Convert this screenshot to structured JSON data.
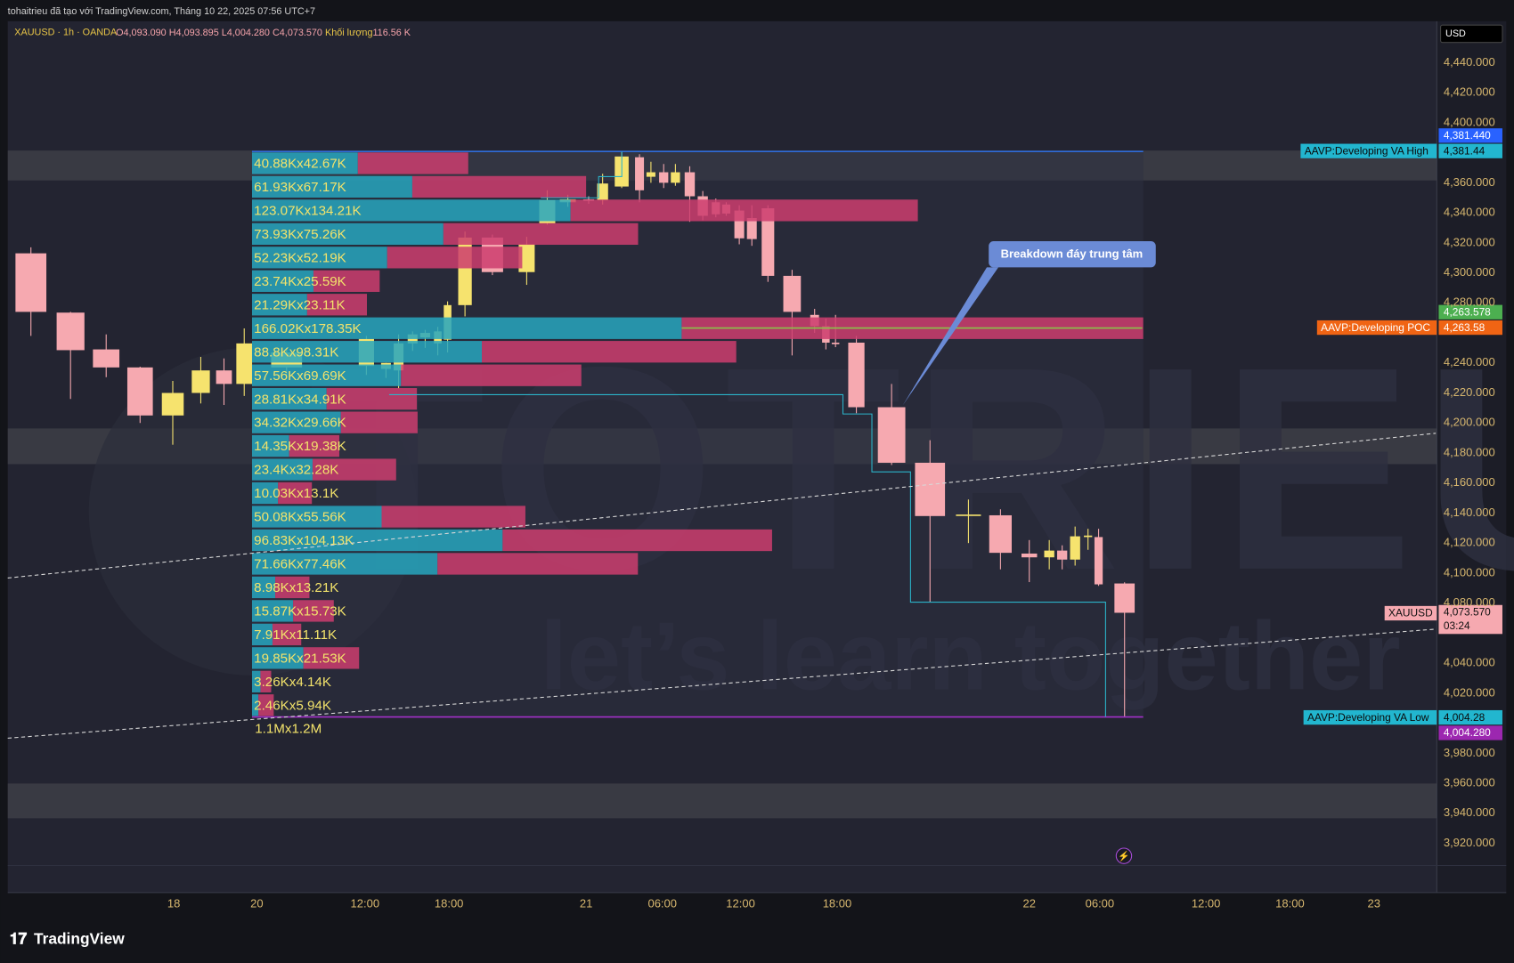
{
  "header": {
    "byline": "tohaitrieu đã tạo với TradingView.com, Tháng 10 22, 2025 07:56 UTC+7",
    "symbol": "XAUUSD · 1h · OANDA",
    "ohlc": [
      "O4,093.090",
      "H4,093.895",
      "L4,004.280",
      "C4,073.570"
    ],
    "volume_key": "Khối lượng",
    "volume": "116.56 K"
  },
  "currency": "USD",
  "badges": {
    "va_high_price": "4,381.440",
    "va_high_name": "AAVP:Developing VA High",
    "va_high": "4,381.44",
    "poc_price": "4,263.578",
    "poc_name": "AAVP:Developing POC",
    "poc": "4,263.58",
    "last_name": "XAUUSD",
    "last": "4,073.570",
    "countdown": "03:24",
    "va_low_name": "AAVP:Developing VA Low",
    "va_low": "4,004.28",
    "va_low_price": "4,004.280"
  },
  "annotation": "Breakdown đáy trung tâm",
  "watermark": {
    "name": "TOTRIEU",
    "slogan": "let’s learn together"
  },
  "brand": "TradingView",
  "chart_data": [
    {
      "type": "candlestick",
      "up_color": "#f6e36e",
      "down_color": "#f6a9b0",
      "grid": false,
      "x": [
        -82.6,
        -59.7,
        -39.1,
        -19.5,
        -0.6,
        15.6,
        29.0,
        40.7,
        51.3,
        60.1,
        61.5,
        62.4,
        63.4,
        64.3,
        65.2,
        65.9,
        66.7,
        67.9,
        69.4,
        70.3,
        71.2,
        72.2,
        73.3,
        74.8,
        76.2,
        77.1,
        78.1,
        79.0,
        80.1,
        81.1,
        82.1,
        82.9,
        83.9,
        84.7,
        85.7,
        87.2,
        88.6,
        89.3,
        89.9,
        90.6,
        91.7,
        92.9,
        94.1,
        95.1,
        96.0,
        97.7,
        98.8,
        99.9,
        101.0,
        101.9,
        103.4
      ],
      "open": [
        4313,
        4273.5,
        4249,
        4237,
        4205,
        4220,
        4235,
        4226,
        4237,
        4238,
        4236,
        4235,
        4253,
        4257,
        4253,
        4255.5,
        4278.5,
        4323.5,
        4300.5,
        4333,
        4347,
        4349,
        4348.5,
        4357.5,
        4377,
        4364,
        4367,
        4360,
        4367,
        4351,
        4347,
        4345.5,
        4341.5,
        4336.5,
        4343,
        4298,
        4272,
        4264.5,
        4253.5,
        4253.5,
        4210.5,
        4173.5,
        4138.5,
        4138.5,
        4113,
        4110.5,
        4115,
        4109,
        4124,
        4124,
        4093.09
      ],
      "high": [
        4317,
        4274,
        4259,
        4237.5,
        4228,
        4244,
        4243,
        4263,
        4250,
        4258,
        4240,
        4259,
        4261,
        4262,
        4264,
        4281,
        4327.5,
        4325.5,
        4324,
        4355,
        4352,
        4351,
        4366,
        4381,
        4379,
        4374,
        4372.5,
        4372.5,
        4371,
        4354.5,
        4349.5,
        4347,
        4345,
        4345,
        4345,
        4302,
        4276,
        4269.5,
        4272,
        4258,
        4226,
        4188.5,
        4149,
        4142.5,
        4122,
        4122,
        4118.5,
        4131,
        4129.5,
        4129.5,
        4093.895
      ],
      "low": [
        4258,
        4216,
        4230.5,
        4200,
        4185.5,
        4213,
        4212,
        4218,
        4232,
        4232,
        4230,
        4223,
        4248,
        4250,
        4245,
        4247,
        4271,
        4298.5,
        4292,
        4332,
        4344,
        4346,
        4345.5,
        4356.5,
        4347,
        4360,
        4356.5,
        4358,
        4334,
        4335,
        4337,
        4338,
        4319,
        4318,
        4294,
        4245,
        4260,
        4249,
        4250.5,
        4206.5,
        4172,
        4080.5,
        4120,
        4102.5,
        4094,
        4102.5,
        4102.5,
        4105,
        4115.5,
        4091.5,
        4004.28
      ],
      "close": [
        4274,
        4248.5,
        4237,
        4205,
        4220,
        4235,
        4226,
        4253,
        4247,
        4256,
        4240,
        4253,
        4259,
        4260,
        4261,
        4278.5,
        4323.5,
        4300.5,
        4319,
        4348.5,
        4349,
        4348.5,
        4359.5,
        4377.5,
        4355,
        4367,
        4360,
        4367,
        4351,
        4338,
        4339,
        4339.5,
        4323,
        4322.5,
        4298,
        4274,
        4264.5,
        4253.5,
        4252.5,
        4210.5,
        4173.5,
        4138,
        4139,
        4113.5,
        4110.5,
        4115,
        4109,
        4124.5,
        4125,
        4092.5,
        4073.57
      ],
      "xlim": [
        -96,
        124.5
      ],
      "xticks": [
        {
          "value": 0,
          "label": "18"
        },
        {
          "value": 48,
          "label": "20"
        },
        {
          "value": 60,
          "label": "12:00"
        },
        {
          "value": 66,
          "label": "18:00"
        },
        {
          "value": 72,
          "label": "21"
        },
        {
          "value": 78,
          "label": "06:00"
        },
        {
          "value": 84,
          "label": "12:00"
        },
        {
          "value": 90,
          "label": "18:00"
        },
        {
          "value": 96,
          "label": "22"
        },
        {
          "value": 102,
          "label": "06:00"
        },
        {
          "value": 108,
          "label": "12:00"
        },
        {
          "value": 114,
          "label": "18:00"
        },
        {
          "value": 120,
          "label": "23"
        }
      ],
      "ylim": [
        3905.2,
        4467.6
      ],
      "yticks": [
        {
          "value": 4440,
          "label": "4,440.000"
        },
        {
          "value": 4420,
          "label": "4,420.000"
        },
        {
          "value": 4400,
          "label": "4,400.000"
        },
        {
          "value": 4360,
          "label": "4,360.000"
        },
        {
          "value": 4340,
          "label": "4,340.000"
        },
        {
          "value": 4320,
          "label": "4,320.000"
        },
        {
          "value": 4300,
          "label": "4,300.000"
        },
        {
          "value": 4280,
          "label": "4,280.000"
        },
        {
          "value": 4240,
          "label": "4,240.000"
        },
        {
          "value": 4220,
          "label": "4,220.000"
        },
        {
          "value": 4200,
          "label": "4,200.000"
        },
        {
          "value": 4180,
          "label": "4,180.000"
        },
        {
          "value": 4160,
          "label": "4,160.000"
        },
        {
          "value": 4140,
          "label": "4,140.000"
        },
        {
          "value": 4120,
          "label": "4,120.000"
        },
        {
          "value": 4100,
          "label": "4,100.000"
        },
        {
          "value": 4080,
          "label": "4,080.000"
        },
        {
          "value": 4040,
          "label": "4,040.000"
        },
        {
          "value": 4020,
          "label": "4,020.000"
        },
        {
          "value": 3980,
          "label": "3,980.000"
        },
        {
          "value": 3960,
          "label": "3,960.000"
        },
        {
          "value": 3940,
          "label": "3,940.000"
        },
        {
          "value": 3920,
          "label": "3,920.000"
        }
      ]
    },
    {
      "type": "profile",
      "label_color": "#f3e36b",
      "series": [
        {
          "color": "#27a6be",
          "values": [
            40.88,
            61.93,
            123.07,
            73.93,
            52.23,
            23.74,
            21.29,
            166.02,
            88.8,
            57.56,
            28.81,
            34.32,
            14.35,
            23.4,
            10.03,
            50.08,
            96.83,
            71.66,
            8.98,
            15.87,
            7.91,
            19.85,
            3.26,
            2.46
          ]
        },
        {
          "color": "#cc3d6e",
          "values": [
            42.67,
            67.17,
            134.21,
            75.26,
            52.19,
            25.59,
            23.11,
            178.35,
            98.31,
            69.69,
            34.91,
            29.66,
            19.38,
            32.28,
            13.1,
            55.56,
            104.13,
            77.46,
            13.21,
            15.73,
            11.11,
            21.53,
            4.14,
            5.94
          ]
        }
      ],
      "row_labels": [
        "40.88Kx42.67K",
        "61.93Kx67.17K",
        "123.07Kx134.21K",
        "73.93Kx75.26K",
        "52.23Kx52.19K",
        "23.74Kx25.59K",
        "21.29Kx23.11K",
        "166.02Kx178.35K",
        "88.8Kx98.31K",
        "57.56Kx69.69K",
        "28.81Kx34.91K",
        "34.32Kx29.66K",
        "14.35Kx19.38K",
        "23.4Kx32.28K",
        "10.03Kx13.1K",
        "50.08Kx55.56K",
        "96.83Kx104.13K",
        "71.66Kx77.46K",
        "8.98Kx13.21K",
        "15.87Kx15.73K",
        "7.91Kx11.11K",
        "19.85Kx21.53K",
        "3.26Kx4.14K",
        "2.46Kx5.94K"
      ],
      "total_label": "1.1Mx1.2M"
    }
  ]
}
